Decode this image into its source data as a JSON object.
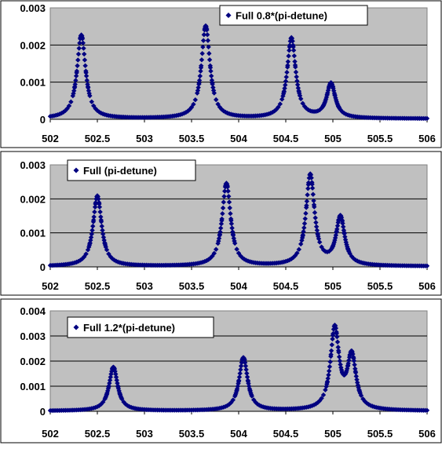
{
  "chart_data": [
    {
      "type": "scatter",
      "legend": "Full 0.8*(pi-detune)",
      "legend_position": "top-right",
      "xlim": [
        502,
        506
      ],
      "ylim": [
        0,
        0.003
      ],
      "x_ticks": [
        "502",
        "502.5",
        "503",
        "503.5",
        "504",
        "504.5",
        "505",
        "505.5",
        "506"
      ],
      "y_ticks": [
        "0",
        "0.001",
        "0.002",
        "0.003"
      ],
      "grid": "horizontal",
      "plot_background": "#c0c0c0",
      "marker_color": "#000080",
      "peaks": [
        {
          "x": 502.33,
          "y": 0.00225
        },
        {
          "x": 503.65,
          "y": 0.00249
        },
        {
          "x": 504.56,
          "y": 0.00216
        },
        {
          "x": 504.98,
          "y": 0.00093
        }
      ]
    },
    {
      "type": "scatter",
      "legend": "Full (pi-detune)",
      "legend_position": "top-left",
      "xlim": [
        502,
        506
      ],
      "ylim": [
        0,
        0.003
      ],
      "x_ticks": [
        "502",
        "502.5",
        "503",
        "503.5",
        "504",
        "504.5",
        "505",
        "505.5",
        "506"
      ],
      "y_ticks": [
        "0",
        "0.001",
        "0.002",
        "0.003"
      ],
      "grid": "horizontal",
      "plot_background": "#c0c0c0",
      "marker_color": "#000080",
      "peaks": [
        {
          "x": 502.5,
          "y": 0.00207
        },
        {
          "x": 503.87,
          "y": 0.00243
        },
        {
          "x": 504.76,
          "y": 0.00267
        },
        {
          "x": 505.08,
          "y": 0.00142
        }
      ]
    },
    {
      "type": "scatter",
      "legend": "Full 1.2*(pi-detune)",
      "legend_position": "top-left",
      "xlim": [
        502,
        506
      ],
      "ylim": [
        0,
        0.004
      ],
      "x_ticks": [
        "502",
        "502.5",
        "503",
        "503.5",
        "504",
        "504.5",
        "505",
        "505.5",
        "506"
      ],
      "y_ticks": [
        "0",
        "0.001",
        "0.002",
        "0.003",
        "0.004"
      ],
      "grid": "horizontal",
      "plot_background": "#c0c0c0",
      "marker_color": "#000080",
      "peaks": [
        {
          "x": 502.67,
          "y": 0.00174
        },
        {
          "x": 504.05,
          "y": 0.00211
        },
        {
          "x": 505.02,
          "y": 0.00323
        },
        {
          "x": 505.2,
          "y": 0.00211
        }
      ]
    }
  ]
}
